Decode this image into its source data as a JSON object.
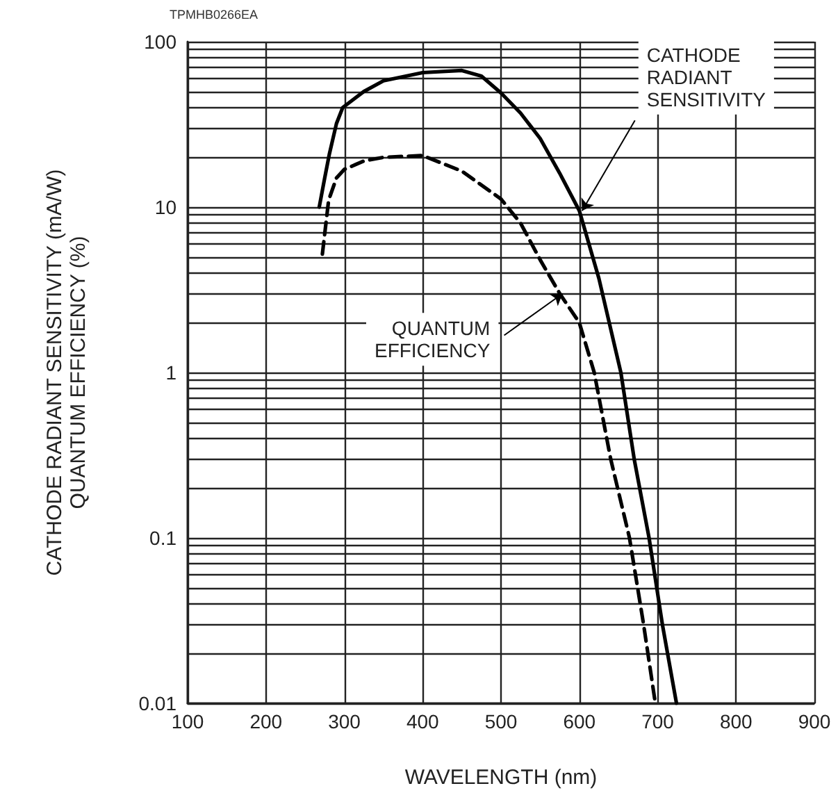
{
  "chart_data": {
    "type": "line",
    "xlabel": "WAVELENGTH (nm)",
    "ylabel": "CATHODE RADIANT SENSITIVITY (mA/W)\nQUANTUM EFFICIENCY (%)",
    "log": "y",
    "grid": true,
    "marker": "none",
    "xlim": [
      100,
      900
    ],
    "xticks": [
      100,
      200,
      300,
      400,
      500,
      600,
      700,
      800,
      900
    ],
    "ylim": [
      0.01,
      100
    ],
    "yticks": [
      0.01,
      {
        "value": 0.02,
        "label": null
      },
      {
        "value": 0.03,
        "label": null
      },
      {
        "value": 0.04,
        "label": null
      },
      {
        "value": 0.05,
        "label": null
      },
      {
        "value": 0.06,
        "label": null
      },
      {
        "value": 0.07,
        "label": null
      },
      {
        "value": 0.08,
        "label": null
      },
      {
        "value": 0.09,
        "label": null
      },
      0.1,
      {
        "value": 0.2,
        "label": null
      },
      {
        "value": 0.3,
        "label": null
      },
      {
        "value": 0.4,
        "label": null
      },
      {
        "value": 0.5,
        "label": null
      },
      {
        "value": 0.6,
        "label": null
      },
      {
        "value": 0.7,
        "label": null
      },
      {
        "value": 0.8,
        "label": null
      },
      {
        "value": 0.9,
        "label": null
      },
      1,
      {
        "value": 2,
        "label": null
      },
      {
        "value": 3,
        "label": null
      },
      {
        "value": 4,
        "label": null
      },
      {
        "value": 5,
        "label": null
      },
      {
        "value": 6,
        "label": null
      },
      {
        "value": 7,
        "label": null
      },
      {
        "value": 8,
        "label": null
      },
      {
        "value": 9,
        "label": null
      },
      10,
      {
        "value": 20,
        "label": null
      },
      {
        "value": 30,
        "label": null
      },
      {
        "value": 40,
        "label": null
      },
      {
        "value": 50,
        "label": null
      },
      {
        "value": 60,
        "label": null
      },
      {
        "value": 70,
        "label": null
      },
      {
        "value": 80,
        "label": null
      },
      {
        "value": 90,
        "label": null
      },
      100
    ],
    "series": [
      {
        "color": "#000000",
        "line_style": "solid",
        "x": [
          268,
          275,
          281,
          290,
          298,
          325,
          350,
          400,
          450,
          475,
          500,
          525,
          550,
          575,
          600,
          625,
          653,
          670,
          689,
          706,
          724
        ],
        "values": [
          10,
          15,
          21,
          32,
          40,
          50,
          58,
          65,
          67,
          62,
          49,
          37,
          26,
          16,
          9.5,
          3.7,
          1,
          0.3,
          0.1,
          0.03,
          0.01
        ]
      },
      {
        "color": "#000000",
        "line_style": "dashed",
        "x": [
          272,
          280,
          290,
          300,
          325,
          350,
          400,
          450,
          500,
          525,
          550,
          575,
          600,
          619,
          640,
          664,
          682,
          697
        ],
        "values": [
          5.2,
          11,
          15,
          16.9,
          19,
          20,
          20.5,
          16.5,
          11.2,
          8,
          4.8,
          3,
          2,
          1,
          0.3,
          0.1,
          0.03,
          0.01
        ]
      }
    ],
    "annotations": [
      "TPMHB0266EA",
      {
        "text": "CATHODE\nRADIANT\nSENSITIVITY",
        "x": 600,
        "y": 9.5
      },
      {
        "text": "QUANTUM\nEFFICIENCY",
        "x": 575,
        "y": 3
      }
    ]
  }
}
